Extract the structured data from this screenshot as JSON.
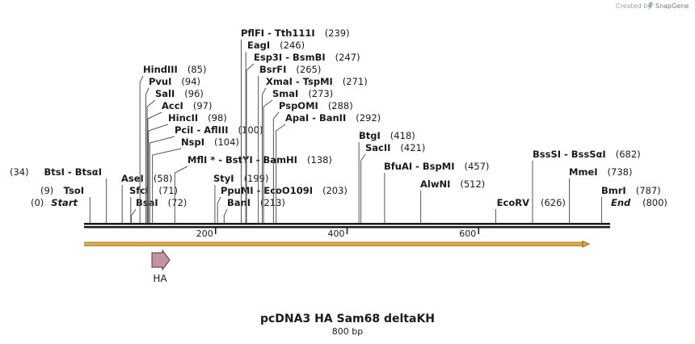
{
  "credit": {
    "text": "Created by",
    "brand": "SnapGene"
  },
  "title": "pcDNA3 HA Sam68 deltaKH",
  "subtitle": "800 bp",
  "ruler": {
    "total_bp": 800,
    "ticks": [
      "200",
      "400",
      "600"
    ]
  },
  "feature": {
    "label": "HA",
    "color": "#c4919c"
  },
  "orf_color": "#e8a530",
  "sites": [
    {
      "id": "start",
      "name": "Start",
      "pos": "(0)",
      "bp": 0,
      "side": "left",
      "italic": true
    },
    {
      "id": "tsoi",
      "name": "TsoI",
      "pos": "(9)",
      "bp": 9,
      "side": "left"
    },
    {
      "id": "btsi",
      "name": "BtsI  -  BtsαI",
      "pos": "(34)",
      "bp": 34,
      "side": "left"
    },
    {
      "id": "asei",
      "name": "AseI",
      "pos": "(58)",
      "bp": 58,
      "side": "right"
    },
    {
      "id": "sfci",
      "name": "SfcI",
      "pos": "(71)",
      "bp": 71,
      "side": "right"
    },
    {
      "id": "bsai",
      "name": "BsaI",
      "pos": "(72)",
      "bp": 72,
      "side": "right"
    },
    {
      "id": "hindiii",
      "name": "HindIII",
      "pos": "(85)",
      "bp": 85,
      "side": "right"
    },
    {
      "id": "pvui",
      "name": "PvuI",
      "pos": "(94)",
      "bp": 94,
      "side": "right"
    },
    {
      "id": "sali",
      "name": "SalI",
      "pos": "(96)",
      "bp": 96,
      "side": "right"
    },
    {
      "id": "acci",
      "name": "AccI",
      "pos": "(97)",
      "bp": 97,
      "side": "right"
    },
    {
      "id": "hincii",
      "name": "HincII",
      "pos": "(98)",
      "bp": 98,
      "side": "right"
    },
    {
      "id": "pcii",
      "name": "PciI  -  AflIII",
      "pos": "(100)",
      "bp": 100,
      "side": "right"
    },
    {
      "id": "nspi",
      "name": "NspI",
      "pos": "(104)",
      "bp": 104,
      "side": "right"
    },
    {
      "id": "mfli",
      "name": "MflI *  -  BstYI  -  BamHI",
      "pos": "(138)",
      "bp": 138,
      "side": "right"
    },
    {
      "id": "styi",
      "name": "StyI",
      "pos": "(199)",
      "bp": 199,
      "side": "right"
    },
    {
      "id": "ppumi",
      "name": "PpuMI  -  EcoO109I",
      "pos": "(203)",
      "bp": 203,
      "side": "right"
    },
    {
      "id": "bani",
      "name": "BanI",
      "pos": "(213)",
      "bp": 213,
      "side": "right"
    },
    {
      "id": "pflfi",
      "name": "PflFI  -  Tth111I",
      "pos": "(239)",
      "bp": 239,
      "side": "right"
    },
    {
      "id": "eagi",
      "name": "EagI",
      "pos": "(246)",
      "bp": 246,
      "side": "right"
    },
    {
      "id": "esp3i",
      "name": "Esp3I  -  BsmBI",
      "pos": "(247)",
      "bp": 247,
      "side": "right"
    },
    {
      "id": "bsrfi",
      "name": "BsrFI",
      "pos": "(265)",
      "bp": 265,
      "side": "right"
    },
    {
      "id": "xmai",
      "name": "XmaI  -  TspMI",
      "pos": "(271)",
      "bp": 271,
      "side": "right"
    },
    {
      "id": "smai",
      "name": "SmaI",
      "pos": "(273)",
      "bp": 273,
      "side": "right"
    },
    {
      "id": "psp",
      "name": "PspOMI",
      "pos": "(288)",
      "bp": 288,
      "side": "right"
    },
    {
      "id": "apai",
      "name": "ApaI  -  BanII",
      "pos": "(292)",
      "bp": 292,
      "side": "right"
    },
    {
      "id": "btgi",
      "name": "BtgI",
      "pos": "(418)",
      "bp": 418,
      "side": "right"
    },
    {
      "id": "sacii",
      "name": "SacII",
      "pos": "(421)",
      "bp": 421,
      "side": "right"
    },
    {
      "id": "bfuai",
      "name": "BfuAI  -  BspMI",
      "pos": "(457)",
      "bp": 457,
      "side": "right"
    },
    {
      "id": "alwni",
      "name": "AlwNI",
      "pos": "(512)",
      "bp": 512,
      "side": "right"
    },
    {
      "id": "ecorv",
      "name": "EcoRV",
      "pos": "(626)",
      "bp": 626,
      "side": "left"
    },
    {
      "id": "bsssi",
      "name": "BssSI  -  BssSαI",
      "pos": "(682)",
      "bp": 682,
      "side": "right"
    },
    {
      "id": "mmei",
      "name": "MmeI",
      "pos": "(738)",
      "bp": 738,
      "side": "right"
    },
    {
      "id": "bmri",
      "name": "BmrI",
      "pos": "(787)",
      "bp": 787,
      "side": "right"
    },
    {
      "id": "end",
      "name": "End",
      "pos": "(800)",
      "bp": 800,
      "side": "right",
      "italic": true
    }
  ]
}
